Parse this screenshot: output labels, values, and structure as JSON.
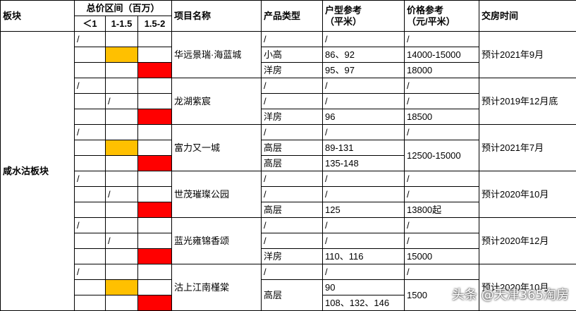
{
  "header": {
    "region": "板块",
    "price_range": "总价区间（百万）",
    "range_lt1": "＜1",
    "range_1_15": "1-1.5",
    "range_15_2": "1.5-2",
    "project": "项目名称",
    "product_type": "产品类型",
    "unit_line1": "户型参考",
    "unit_line2": "（平米）",
    "price_line1": "价格参考",
    "price_line2": "（元/平米）",
    "delivery": "交房时间"
  },
  "region_name": "咸水沽板块",
  "highlight_colors": {
    "yellow": "#ffc000",
    "red": "#ff0000"
  },
  "projects": [
    {
      "name": "华远景瑞·海蓝城",
      "delivery": "预计2021年9月",
      "rows": [
        {
          "lt1": "/",
          "type": "/",
          "unit": "/",
          "price": "/"
        },
        {
          "type": "小高",
          "unit": "86、92",
          "price": "14000-15000"
        },
        {
          "type": "洋房",
          "unit": "95、97",
          "price": "18000"
        }
      ]
    },
    {
      "name": "龙湖紫宸",
      "delivery": "预计2019年12月底",
      "rows": [
        {
          "lt1": "/",
          "type": "/",
          "unit": "/",
          "price": "/"
        },
        {
          "r115": "/",
          "type": "/",
          "unit": "/",
          "price": "/"
        },
        {
          "type": "洋房",
          "unit": "96",
          "price": "18500"
        }
      ]
    },
    {
      "name": "富力又一城",
      "delivery": "预计2021年7月",
      "price_merged": "12500-15000",
      "rows": [
        {
          "lt1": "/",
          "type": "/",
          "unit": "/",
          "price": "/"
        },
        {
          "type": "高层",
          "unit": "89-131"
        },
        {
          "type": "高层",
          "unit": "135-148"
        }
      ]
    },
    {
      "name": "世茂璀璨公园",
      "delivery": "预计2020年10月",
      "rows": [
        {
          "lt1": "/",
          "type": "/",
          "unit": "/",
          "price": "/"
        },
        {
          "r115": "/",
          "type": "/",
          "unit": "/",
          "price": "/"
        },
        {
          "type": "高层",
          "unit": "125",
          "price": "13800起"
        }
      ]
    },
    {
      "name": "蓝光雍锦香颂",
      "delivery": "预计2020年12月",
      "rows": [
        {
          "lt1": "/",
          "type": "/",
          "unit": "/",
          "price": "/"
        },
        {
          "r115": "/",
          "type": "/",
          "unit": "/",
          "price": "/"
        },
        {
          "type": "洋房",
          "unit": "110、116",
          "price": "15000"
        }
      ]
    },
    {
      "name": "沽上江南槿棠",
      "delivery": "预计2020年10月",
      "rows": [
        {
          "lt1": "/",
          "type": "/",
          "unit": "/",
          "price": "/"
        },
        {
          "type": "高层",
          "unit": "90",
          "price": "1500"
        },
        {
          "unit": "108、132、146"
        }
      ]
    }
  ],
  "watermark": "头条 @天津365淘房"
}
